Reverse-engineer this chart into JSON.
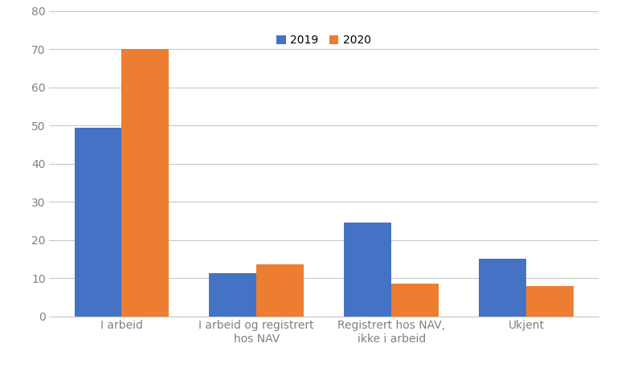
{
  "categories": [
    "I arbeid",
    "I arbeid og registrert\nhos NAV",
    "Registrert hos NAV,\nikke i arbeid",
    "Ukjent"
  ],
  "values_2019": [
    49.5,
    11.2,
    24.5,
    15.0
  ],
  "values_2020": [
    70.0,
    13.5,
    8.5,
    8.0
  ],
  "color_2019": "#4472C4",
  "color_2020": "#ED7D31",
  "legend_labels": [
    "2019",
    "2020"
  ],
  "ylim": [
    0,
    80
  ],
  "yticks": [
    0,
    10,
    20,
    30,
    40,
    50,
    60,
    70,
    80
  ],
  "bar_width": 0.35,
  "background_color": "#ffffff",
  "grid_color": "#c8c8c8",
  "tick_label_color": "#808080",
  "tick_fontsize": 10,
  "legend_fontsize": 10
}
